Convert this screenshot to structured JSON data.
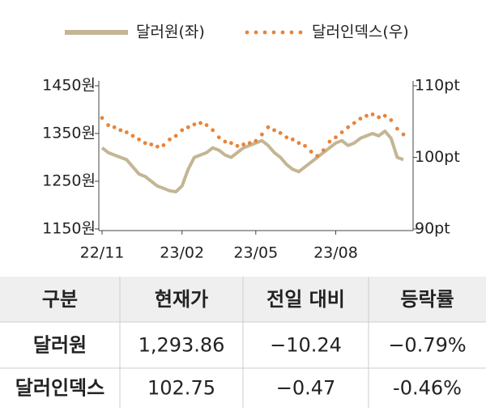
{
  "chart_data": {
    "type": "line",
    "categories": [
      "22/11",
      null,
      null,
      null,
      null,
      null,
      null,
      null,
      null,
      null,
      null,
      null,
      null,
      "23/02",
      null,
      null,
      null,
      null,
      null,
      null,
      null,
      null,
      null,
      null,
      null,
      "23/05",
      null,
      null,
      null,
      null,
      null,
      null,
      null,
      null,
      null,
      null,
      null,
      null,
      "23/08",
      null,
      null,
      null,
      null,
      null,
      null,
      null,
      null,
      null,
      null,
      null
    ],
    "series": [
      {
        "name": "달러원(좌)",
        "color": "#c4b594",
        "style": "solid",
        "values": [
          1320,
          1310,
          1305,
          1300,
          1295,
          1280,
          1265,
          1260,
          1250,
          1240,
          1235,
          1230,
          1228,
          1240,
          1275,
          1300,
          1305,
          1310,
          1320,
          1315,
          1305,
          1300,
          1310,
          1320,
          1325,
          1330,
          1335,
          1325,
          1310,
          1300,
          1285,
          1275,
          1270,
          1280,
          1290,
          1300,
          1310,
          1320,
          1330,
          1335,
          1325,
          1330,
          1340,
          1345,
          1350,
          1345,
          1355,
          1340,
          1300,
          1295
        ]
      },
      {
        "name": "달러인덱스(우)",
        "color": "#e8843a",
        "style": "dotted",
        "axis": "y2",
        "values": [
          105.5,
          104.5,
          104.2,
          103.8,
          103.5,
          103,
          102.5,
          102,
          101.8,
          101.5,
          101.7,
          102.5,
          103,
          103.8,
          104.2,
          104.6,
          104.8,
          104.5,
          103.8,
          102.8,
          102.2,
          102,
          101.6,
          101.8,
          102,
          102.3,
          103.2,
          104.2,
          103.8,
          103.4,
          102.8,
          102.5,
          102,
          101.6,
          100.8,
          100.2,
          101,
          102.2,
          102.8,
          103.5,
          104.2,
          104.8,
          105.4,
          105.8,
          106,
          105.6,
          105.8,
          105.2,
          104,
          103.2
        ]
      }
    ],
    "ylim": [
      1150,
      1450
    ],
    "yticks": [
      {
        "value": 1150,
        "label": "1150원"
      },
      {
        "value": 1250,
        "label": "1250원"
      },
      {
        "value": 1350,
        "label": "1350원"
      },
      {
        "value": 1450,
        "label": "1450원"
      }
    ],
    "y2lim": [
      90,
      110
    ],
    "y2ticks": [
      {
        "value": 90,
        "label": "90pt"
      },
      {
        "value": 100,
        "label": "100pt"
      },
      {
        "value": 110,
        "label": "110pt"
      }
    ],
    "legend": "top"
  },
  "table": {
    "header": [
      "구분",
      "현재가",
      "전일 대비",
      "등락률"
    ],
    "rows": [
      [
        "달러원",
        "1,293.86",
        "−10.24",
        "−0.79%"
      ],
      [
        "달러인덱스",
        "102.75",
        "−0.47",
        "-0.46%"
      ]
    ]
  }
}
